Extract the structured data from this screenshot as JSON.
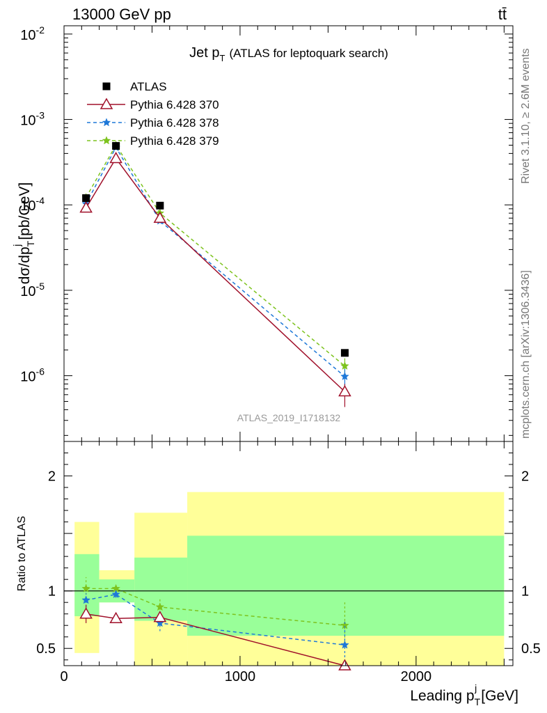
{
  "header": {
    "energy_label": "13000 GeV pp",
    "process_label": "tt̄"
  },
  "side_labels": {
    "rivet": "Rivet 3.1.10, ≥ 2.6M events",
    "mcplots": "mcplots.cern.ch [arXiv:1306.3436]"
  },
  "chart_data": {
    "type": "scatter",
    "title": "Jet p_T (ATLAS for leptoquark search)",
    "title_main": "Jet p",
    "title_sub": "T",
    "title_rest": "(ATLAS for leptoquark search)",
    "watermark": "ATLAS_2019_I1718132",
    "xlabel": "Leading p_T^j [GeV]",
    "xlabel_main": "Leading p",
    "xlabel_sub": "T",
    "xlabel_sup": "j",
    "xlabel_unit": "[GeV]",
    "ylabel": "dσ/dp_T^j [pb/GeV]",
    "ylabel_main": "dσ/dp",
    "ylabel_sub": "T",
    "ylabel_sup": "j",
    "ylabel_unit": "[pb/GeV]",
    "ratio_ylabel": "Ratio to ATLAS",
    "xlim": [
      0,
      2550
    ],
    "main_ylim": [
      1.7e-07,
      0.0125
    ],
    "main_yscale": "log",
    "ratio_ylim": [
      0.35,
      2.3
    ],
    "x_ticks": [
      0,
      1000,
      2000
    ],
    "x_tick_labels": [
      "0",
      "1000",
      "2000"
    ],
    "main_y_ticks": [
      {
        "mantissa": "10",
        "exp": "-6",
        "value": 1e-06
      },
      {
        "mantissa": "10",
        "exp": "-5",
        "value": 1e-05
      },
      {
        "mantissa": "10",
        "exp": "-4",
        "value": 0.0001
      },
      {
        "mantissa": "10",
        "exp": "-3",
        "value": 0.001
      },
      {
        "mantissa": "10",
        "exp": "-2",
        "value": 0.01
      }
    ],
    "ratio_y_ticks": [
      {
        "label": "0.5",
        "value": 0.5
      },
      {
        "label": "1",
        "value": 1
      },
      {
        "label": "2",
        "value": 2
      }
    ],
    "bins": [
      {
        "lo": 60,
        "hi": 200
      },
      {
        "lo": 200,
        "hi": 400
      },
      {
        "lo": 400,
        "hi": 700
      },
      {
        "lo": 700,
        "hi": 2500
      }
    ],
    "x": [
      125,
      295,
      545,
      1595
    ],
    "band_stat": [
      [
        0.78,
        1.32
      ],
      [
        0.9,
        1.1
      ],
      [
        0.74,
        1.29
      ],
      [
        0.61,
        1.48
      ]
    ],
    "band_total": [
      [
        0.46,
        1.6
      ],
      [
        0.9,
        1.18
      ],
      [
        0.3,
        1.68
      ],
      [
        0.3,
        1.86
      ]
    ],
    "legend_position": "top-left",
    "series": [
      {
        "name": "ATLAS",
        "color": "#000000",
        "marker": "square",
        "values": [
          0.00012,
          0.00049,
          9.8e-05,
          1.85e-06
        ]
      },
      {
        "name": "Pythia 6.428 370",
        "color": "#a0102a",
        "marker": "triangle-open",
        "dash": "",
        "values": [
          9.2e-05,
          0.00035,
          7e-05,
          6.5e-07
        ],
        "ratio": [
          0.8,
          0.76,
          0.77,
          0.35
        ],
        "ratio_err": [
          [
            0.72,
            0.88
          ],
          [
            0.74,
            0.8
          ],
          [
            0.73,
            0.82
          ],
          [
            0.3,
            0.4
          ]
        ],
        "main_err": [
          [
            null,
            null
          ],
          [
            null,
            null
          ],
          [
            null,
            null
          ],
          [
            4.3e-07,
            8e-07
          ]
        ]
      },
      {
        "name": "Pythia 6.428 378",
        "color": "#1e78d8",
        "marker": "star",
        "dash": "5,4",
        "values": [
          0.000103,
          0.00047,
          6.5e-05,
          9.8e-07
        ],
        "ratio": [
          0.92,
          0.97,
          0.72,
          0.53
        ],
        "ratio_err": [
          [
            0.86,
            0.98
          ],
          [
            0.94,
            1.0
          ],
          [
            0.65,
            0.79
          ],
          [
            0.35,
            0.73
          ]
        ],
        "main_err": [
          [
            null,
            null
          ],
          [
            null,
            null
          ],
          [
            null,
            null
          ],
          [
            7.5e-07,
            1.2e-06
          ]
        ]
      },
      {
        "name": "Pythia 6.428 379",
        "color": "#7dc31e",
        "marker": "star",
        "dash": "5,4",
        "values": [
          0.000122,
          0.0005,
          8e-05,
          1.3e-06
        ],
        "ratio": [
          1.02,
          1.02,
          0.86,
          0.7
        ],
        "ratio_err": [
          [
            0.93,
            1.12
          ],
          [
            0.99,
            1.05
          ],
          [
            0.8,
            0.93
          ],
          [
            0.52,
            0.9
          ]
        ],
        "main_err": [
          [
            null,
            null
          ],
          [
            null,
            null
          ],
          [
            null,
            null
          ],
          [
            1e-06,
            1.6e-06
          ]
        ]
      }
    ]
  },
  "colors": {
    "band_total": "#ffff99",
    "band_stat": "#99ff99",
    "watermark": "#999999",
    "side_text": "#777777"
  }
}
